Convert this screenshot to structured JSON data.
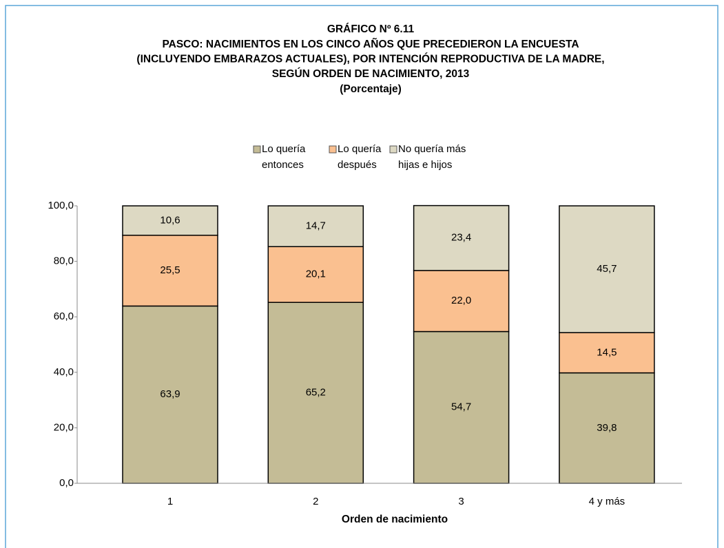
{
  "chart_data": {
    "type": "stacked_bar",
    "title": [
      "GRÁFICO Nº 6.11",
      "PASCO: NACIMIENTOS EN LOS CINCO AÑOS QUE PRECEDIERON LA ENCUESTA",
      "(INCLUYENDO EMBARAZOS ACTUALES), POR INTENCIÓN REPRODUCTIVA DE LA MADRE,",
      "SEGÚN ORDEN DE NACIMIENTO, 2013"
    ],
    "subtitle": "(Porcentaje)",
    "x_label": "Orden de nacimiento",
    "categories": [
      "1",
      "2",
      "3",
      "4 y más"
    ],
    "series": [
      {
        "name": "Lo quería entonces",
        "color": "#c4bc96",
        "values": [
          63.9,
          65.2,
          54.7,
          39.8
        ],
        "value_labels": [
          "63,9",
          "65,2",
          "54,7",
          "39,8"
        ]
      },
      {
        "name": "Lo quería después",
        "color": "#fac090",
        "values": [
          25.5,
          20.1,
          22.0,
          14.5
        ],
        "value_labels": [
          "25,5",
          "20,1",
          "22,0",
          "14,5"
        ]
      },
      {
        "name": "No quería más hijas e hijos",
        "color": "#ddd9c3",
        "values": [
          10.6,
          14.7,
          23.4,
          45.7
        ],
        "value_labels": [
          "10,6",
          "14,7",
          "23,4",
          "45,7"
        ]
      }
    ],
    "ylim": [
      0,
      100
    ],
    "yticks": [
      {
        "value": 0,
        "label": "0,0"
      },
      {
        "value": 20,
        "label": "20,0"
      },
      {
        "value": 40,
        "label": "40,0"
      },
      {
        "value": 60,
        "label": "60,0"
      },
      {
        "value": 80,
        "label": "80,0"
      },
      {
        "value": 100,
        "label": "100,0"
      }
    ],
    "legend": "top"
  }
}
